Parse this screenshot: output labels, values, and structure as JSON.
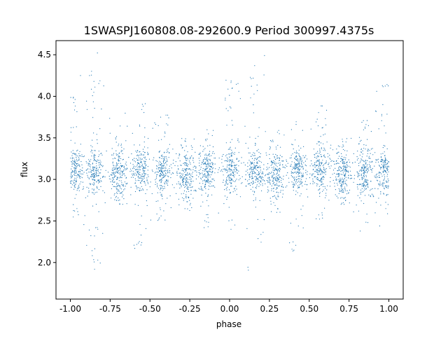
{
  "chart_data": {
    "type": "scatter",
    "title": "1SWASPJ160808.08-292600.9 Period 300997.4375s",
    "xlabel": "phase",
    "ylabel": "flux",
    "xlim": [
      -1.09,
      1.09
    ],
    "ylim": [
      1.56,
      4.67
    ],
    "xticks": [
      "-1.00",
      "-0.75",
      "-0.50",
      "-0.25",
      "0.00",
      "0.25",
      "0.50",
      "0.75",
      "1.00"
    ],
    "xtick_values": [
      -1.0,
      -0.75,
      -0.5,
      -0.25,
      0.0,
      0.25,
      0.5,
      0.75,
      1.0
    ],
    "yticks": [
      "2.0",
      "2.5",
      "3.0",
      "3.5",
      "4.0",
      "4.5"
    ],
    "ytick_values": [
      2.0,
      2.5,
      3.0,
      3.5,
      4.0,
      4.5
    ],
    "grid": false,
    "marker_color": "#1f77b4",
    "note_on_points": "Several thousand points in phase-folded clusters; approximate cluster summary below",
    "clusters": [
      {
        "phase": -0.97,
        "flux_center": 3.1,
        "flux_min": 2.4,
        "flux_max": 4.4
      },
      {
        "phase": -0.85,
        "flux_center": 3.1,
        "flux_min": 1.9,
        "flux_max": 4.55
      },
      {
        "phase": -0.7,
        "flux_center": 3.05,
        "flux_min": 2.7,
        "flux_max": 3.8
      },
      {
        "phase": -0.56,
        "flux_center": 3.1,
        "flux_min": 2.1,
        "flux_max": 4.0
      },
      {
        "phase": -0.42,
        "flux_center": 3.1,
        "flux_min": 2.5,
        "flux_max": 3.8
      },
      {
        "phase": -0.27,
        "flux_center": 3.05,
        "flux_min": 2.6,
        "flux_max": 3.5
      },
      {
        "phase": -0.14,
        "flux_center": 3.1,
        "flux_min": 2.4,
        "flux_max": 3.6
      },
      {
        "phase": 0.01,
        "flux_center": 3.1,
        "flux_min": 2.4,
        "flux_max": 4.2
      },
      {
        "phase": 0.16,
        "flux_center": 3.1,
        "flux_min": 1.9,
        "flux_max": 4.55
      },
      {
        "phase": 0.29,
        "flux_center": 3.05,
        "flux_min": 2.6,
        "flux_max": 3.6
      },
      {
        "phase": 0.43,
        "flux_center": 3.1,
        "flux_min": 2.1,
        "flux_max": 3.8
      },
      {
        "phase": 0.57,
        "flux_center": 3.1,
        "flux_min": 2.5,
        "flux_max": 3.9
      },
      {
        "phase": 0.71,
        "flux_center": 3.05,
        "flux_min": 2.7,
        "flux_max": 3.5
      },
      {
        "phase": 0.85,
        "flux_center": 3.1,
        "flux_min": 2.3,
        "flux_max": 3.8
      },
      {
        "phase": 0.97,
        "flux_center": 3.1,
        "flux_min": 2.4,
        "flux_max": 4.2
      }
    ]
  }
}
